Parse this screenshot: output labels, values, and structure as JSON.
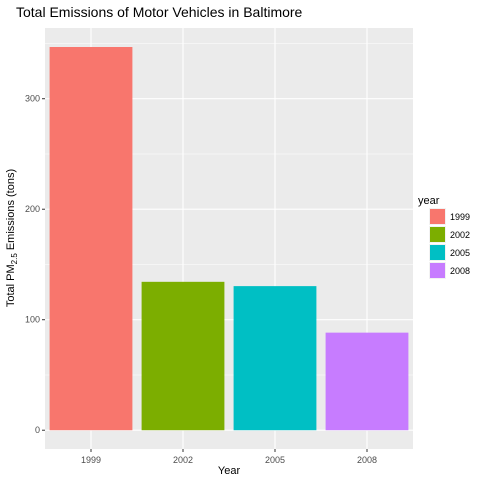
{
  "chart_data": {
    "type": "bar",
    "title": "Total Emissions of Motor Vehicles in Baltimore",
    "xlabel": "Year",
    "ylabel": {
      "prefix": "Total PM",
      "subscript": "2.5",
      "suffix": " Emissions (tons)"
    },
    "categories": [
      "1999",
      "2002",
      "2005",
      "2008"
    ],
    "values": [
      346.8,
      134.3,
      130.4,
      88.3
    ],
    "colors": [
      "#F8766D",
      "#7CAE00",
      "#00BFC4",
      "#C77CFF"
    ],
    "ylim": [
      -17,
      364
    ],
    "yticks": [
      0,
      100,
      200,
      300
    ],
    "grid": true,
    "legend": {
      "title": "year",
      "placement": "right",
      "entries": [
        "1999",
        "2002",
        "2005",
        "2008"
      ]
    }
  }
}
